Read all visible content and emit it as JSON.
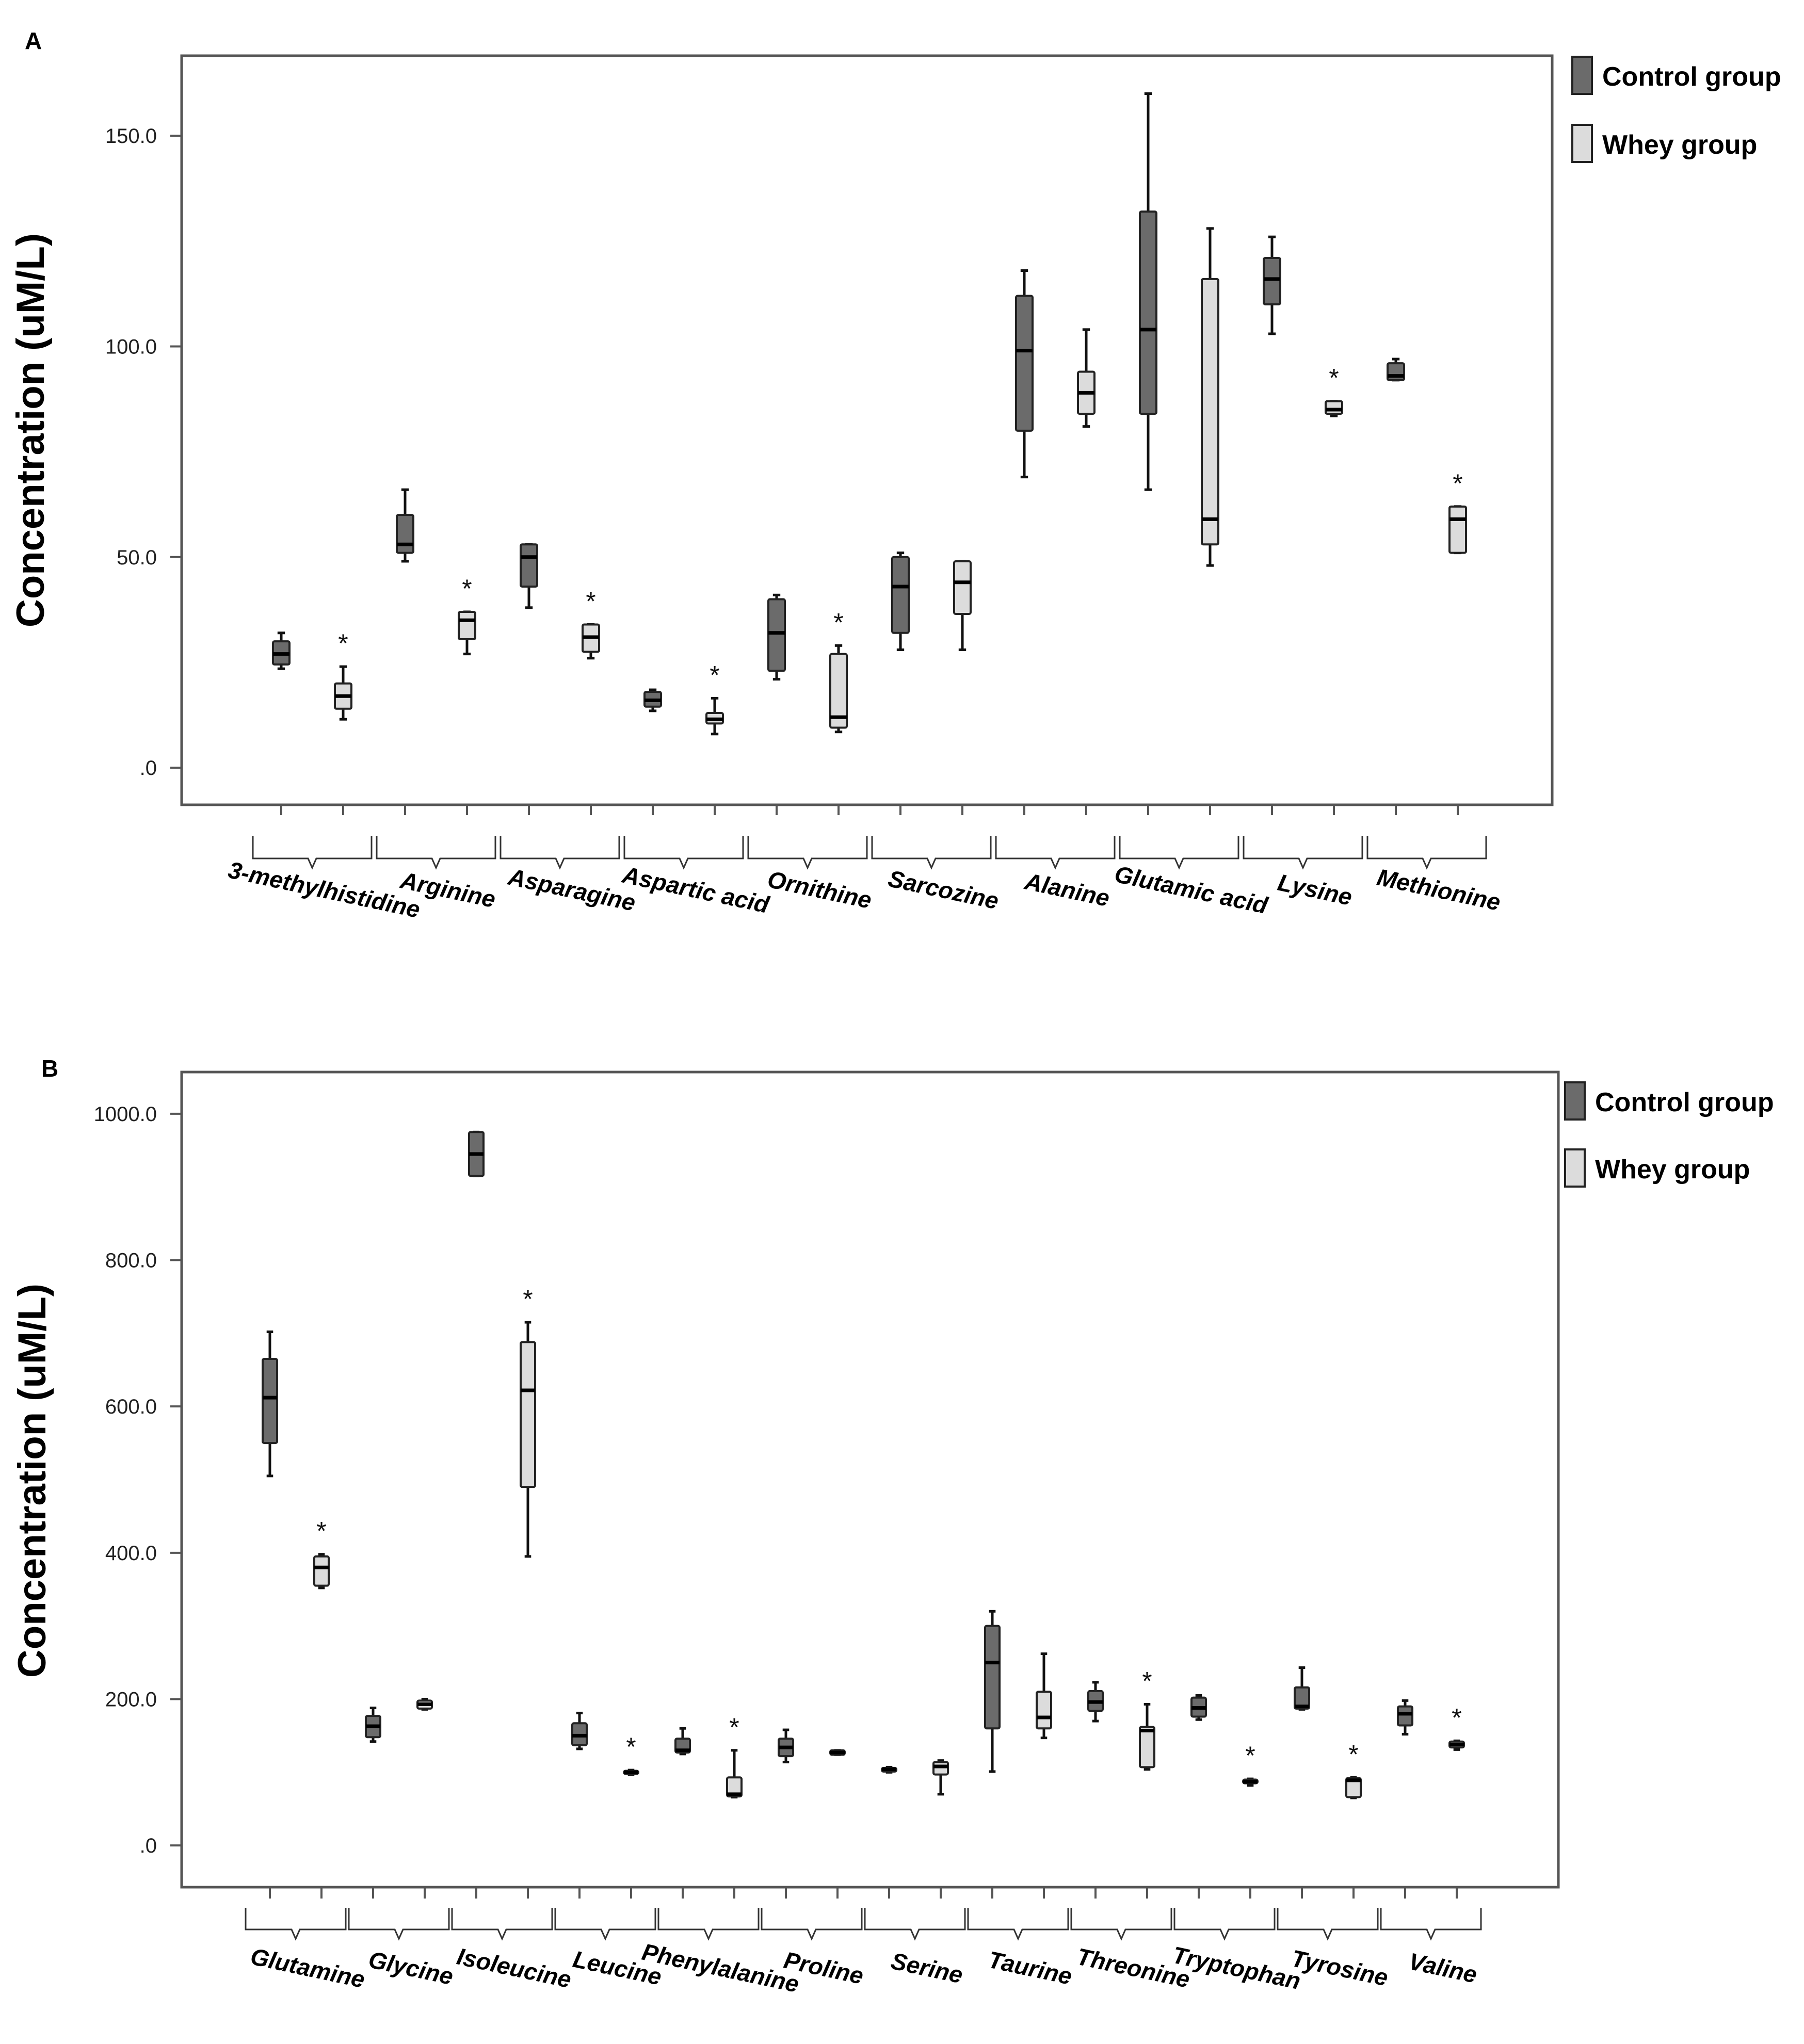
{
  "colors": {
    "control": "#6b6b6b",
    "whey": "#dcdcdc",
    "axis": "#555555",
    "text": "#000000"
  },
  "chart_data": [
    {
      "panel_label": "A",
      "type": "box",
      "ylabel": "Concentration (uM/L)",
      "ylim": [
        -8.8,
        169
      ],
      "yticks": [
        0,
        50,
        100,
        150
      ],
      "ytick_labels": [
        ".0",
        "50.0",
        "100.0",
        "150.0"
      ],
      "legend": [
        "Control group",
        "Whey group"
      ],
      "legend_position": "top-right",
      "categories": [
        "3-methylhistidine",
        "Arginine",
        "Asparagine",
        "Aspartic acid",
        "Ornithine",
        "Sarcozine",
        "Alanine",
        "Glutamic acid",
        "Lysine",
        "Methionine"
      ],
      "series": [
        {
          "name": "Control group",
          "boxes": [
            {
              "min": 23.5,
              "q1": 24.5,
              "median": 27,
              "q3": 30,
              "max": 32
            },
            {
              "min": 49,
              "q1": 51,
              "median": 53,
              "q3": 60,
              "max": 66
            },
            {
              "min": 38,
              "q1": 43,
              "median": 50,
              "q3": 53,
              "max": 53
            },
            {
              "min": 13.5,
              "q1": 14.5,
              "median": 16,
              "q3": 18,
              "max": 18.5
            },
            {
              "min": 21,
              "q1": 23,
              "median": 32,
              "q3": 40,
              "max": 41
            },
            {
              "min": 28,
              "q1": 32,
              "median": 43,
              "q3": 50,
              "max": 51
            },
            {
              "min": 69,
              "q1": 80,
              "median": 99,
              "q3": 112,
              "max": 118
            },
            {
              "min": 66,
              "q1": 84,
              "median": 104,
              "q3": 132,
              "max": 160
            },
            {
              "min": 103,
              "q1": 110,
              "median": 116,
              "q3": 121,
              "max": 126
            },
            {
              "min": 92,
              "q1": 92,
              "median": 93,
              "q3": 96,
              "max": 97
            }
          ]
        },
        {
          "name": "Whey group",
          "boxes": [
            {
              "min": 11.5,
              "q1": 14,
              "median": 17,
              "q3": 20,
              "max": 24
            },
            {
              "min": 27,
              "q1": 30.5,
              "median": 35,
              "q3": 37,
              "max": 37
            },
            {
              "min": 26,
              "q1": 27.5,
              "median": 31,
              "q3": 34,
              "max": 34
            },
            {
              "min": 8,
              "q1": 10.5,
              "median": 11.5,
              "q3": 13,
              "max": 16.5
            },
            {
              "min": 8.5,
              "q1": 9.5,
              "median": 12,
              "q3": 27,
              "max": 29
            },
            {
              "min": 28,
              "q1": 36.5,
              "median": 44,
              "q3": 49,
              "max": 49
            },
            {
              "min": 81,
              "q1": 84,
              "median": 89,
              "q3": 94,
              "max": 104
            },
            {
              "min": 48,
              "q1": 53,
              "median": 59,
              "q3": 116,
              "max": 128
            },
            {
              "min": 83.5,
              "q1": 84,
              "median": 85,
              "q3": 87,
              "max": 87
            },
            {
              "min": 51,
              "q1": 51,
              "median": 59,
              "q3": 62,
              "max": 62
            }
          ]
        }
      ],
      "significant": [
        false,
        false,
        false,
        false,
        false,
        false,
        false,
        false,
        false,
        false
      ],
      "significant_whey": [
        true,
        true,
        true,
        true,
        true,
        false,
        false,
        false,
        true,
        true
      ],
      "significance_mark": "*"
    },
    {
      "panel_label": "B",
      "type": "box",
      "ylabel": "Concentration (uM/L)",
      "ylim": [
        -57,
        1057
      ],
      "yticks": [
        0,
        200,
        400,
        600,
        800,
        1000
      ],
      "ytick_labels": [
        ".0",
        "200.0",
        "400.0",
        "600.0",
        "800.0",
        "1000.0"
      ],
      "legend": [
        "Control group",
        "Whey group"
      ],
      "legend_position": "top-right",
      "categories": [
        "Glutamine",
        "Glycine",
        "Isoleucine",
        "Leucine",
        "Phenylalanine",
        "Proline",
        "Serine",
        "Taurine",
        "Threonine",
        "Tryptophan",
        "Tyrosine",
        "Valine"
      ],
      "series": [
        {
          "name": "Control group",
          "boxes": [
            {
              "min": 505,
              "q1": 550,
              "median": 612,
              "q3": 665,
              "max": 702
            },
            {
              "min": 142,
              "q1": 148,
              "median": 163,
              "q3": 177,
              "max": 188
            },
            {
              "min": 915,
              "q1": 915,
              "median": 945,
              "q3": 975,
              "max": 975
            },
            {
              "min": 132,
              "q1": 137,
              "median": 150,
              "q3": 167,
              "max": 181
            },
            {
              "min": 125,
              "q1": 127,
              "median": 130,
              "q3": 146,
              "max": 160
            },
            {
              "min": 114,
              "q1": 122,
              "median": 134,
              "q3": 146,
              "max": 158
            },
            {
              "min": 100,
              "q1": 101,
              "median": 104,
              "q3": 106,
              "max": 107
            },
            {
              "min": 101,
              "q1": 160,
              "median": 250,
              "q3": 300,
              "max": 320
            },
            {
              "min": 170,
              "q1": 184,
              "median": 196,
              "q3": 211,
              "max": 223
            },
            {
              "min": 172,
              "q1": 176,
              "median": 188,
              "q3": 202,
              "max": 205
            },
            {
              "min": 186,
              "q1": 187,
              "median": 190,
              "q3": 216,
              "max": 243
            },
            {
              "min": 152,
              "q1": 164,
              "median": 180,
              "q3": 190,
              "max": 198
            }
          ]
        },
        {
          "name": "Whey group",
          "boxes": [
            {
              "min": 352,
              "q1": 355,
              "median": 380,
              "q3": 395,
              "max": 398
            },
            {
              "min": 186,
              "q1": 187,
              "median": 193,
              "q3": 198,
              "max": 200
            },
            {
              "min": 395,
              "q1": 490,
              "median": 622,
              "q3": 688,
              "max": 715
            },
            {
              "min": 97,
              "q1": 98,
              "median": 100,
              "q3": 102,
              "max": 103
            },
            {
              "min": 66,
              "q1": 67,
              "median": 70,
              "q3": 93,
              "max": 130
            },
            {
              "min": 124,
              "q1": 124,
              "median": 127,
              "q3": 130,
              "max": 130
            },
            {
              "min": 70,
              "q1": 97,
              "median": 108,
              "q3": 114,
              "max": 116
            },
            {
              "min": 147,
              "q1": 160,
              "median": 175,
              "q3": 210,
              "max": 262
            },
            {
              "min": 104,
              "q1": 107,
              "median": 157,
              "q3": 162,
              "max": 193
            },
            {
              "min": 82,
              "q1": 85,
              "median": 87,
              "q3": 90,
              "max": 91
            },
            {
              "min": 65,
              "q1": 66,
              "median": 89,
              "q3": 92,
              "max": 93
            },
            {
              "min": 131,
              "q1": 134,
              "median": 138,
              "q3": 142,
              "max": 143
            }
          ]
        }
      ],
      "significant_whey": [
        true,
        false,
        true,
        true,
        true,
        false,
        false,
        false,
        true,
        true,
        true,
        true
      ],
      "significance_mark": "*"
    }
  ]
}
